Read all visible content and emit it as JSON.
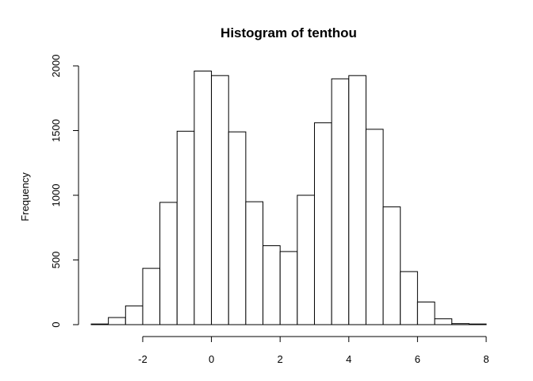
{
  "chart_data": {
    "type": "bar",
    "title": "Histogram of tenthou",
    "xlabel": "",
    "ylabel": "Frequency",
    "bin_edges": [
      -3.5,
      -3.0,
      -2.5,
      -2.0,
      -1.5,
      -1.0,
      -0.5,
      0.0,
      0.5,
      1.0,
      1.5,
      2.0,
      2.5,
      3.0,
      3.5,
      4.0,
      4.5,
      5.0,
      5.5,
      6.0,
      6.5,
      7.0,
      7.5,
      8.0
    ],
    "values": [
      5,
      55,
      145,
      435,
      945,
      1495,
      1960,
      1925,
      1490,
      950,
      610,
      565,
      1000,
      1560,
      1900,
      1925,
      1510,
      910,
      410,
      175,
      45,
      8,
      5
    ],
    "xlim": [
      -3.5,
      8
    ],
    "ylim": [
      0,
      2000
    ],
    "x_ticks": [
      -2,
      0,
      2,
      4,
      6,
      8
    ],
    "y_ticks": [
      0,
      500,
      1000,
      1500,
      2000
    ],
    "grid": false,
    "legend": "none"
  }
}
